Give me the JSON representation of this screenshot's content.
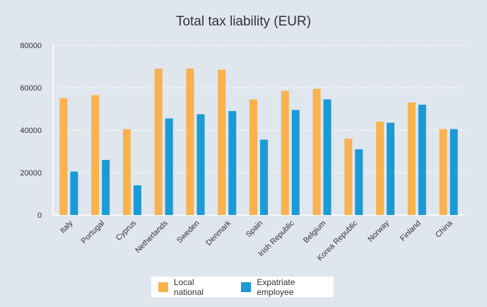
{
  "chart_data": {
    "type": "bar",
    "title": "Total tax liability (EUR)",
    "xlabel": "",
    "ylabel": "",
    "ylim": [
      0,
      80000
    ],
    "yticks": [
      "0",
      "20000",
      "40000",
      "60000",
      "80000"
    ],
    "categories": [
      "Italy",
      "Portugal",
      "Cyprus",
      "Netherlands",
      "Sweden",
      "Denmark",
      "Spain",
      "Irish Republic",
      "Belgium",
      "Korea Republic",
      "Norway",
      "Finland",
      "China"
    ],
    "series": [
      {
        "name": "Local national",
        "color": "#f9b24e",
        "values": [
          55000,
          56500,
          40500,
          69000,
          69000,
          68500,
          54500,
          58500,
          59500,
          36000,
          44000,
          53000,
          40500
        ]
      },
      {
        "name": "Expatriate employee",
        "color": "#1c9ad6",
        "values": [
          20500,
          26000,
          14000,
          45500,
          47500,
          49000,
          35500,
          49500,
          54500,
          31000,
          43500,
          52000,
          40500
        ]
      }
    ],
    "grid": true,
    "legend_position": "bottom-center"
  }
}
